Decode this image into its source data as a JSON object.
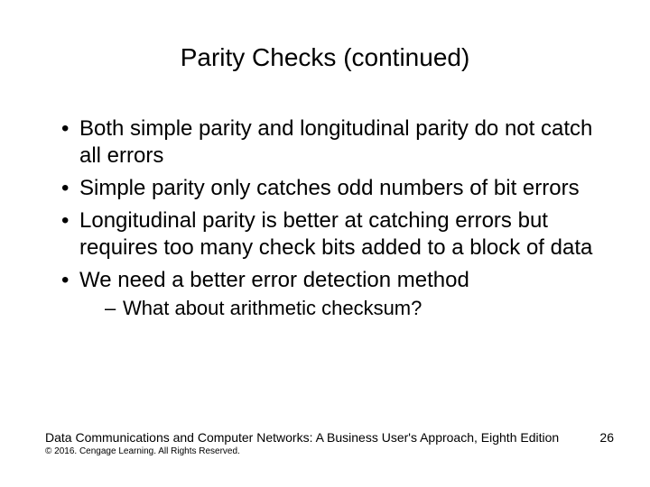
{
  "title": "Parity Checks (continued)",
  "bullets": {
    "b1": "Both simple parity and longitudinal parity do not catch all errors",
    "b2": "Simple parity only catches odd numbers of bit errors",
    "b3": "Longitudinal parity is better at catching errors but requires too many check bits added to a block of data",
    "b4": "We need a better error detection method",
    "b4_sub1": "What about arithmetic checksum?"
  },
  "footer": {
    "source": "Data Communications and Computer Networks: A Business User's Approach, Eighth Edition",
    "page": "26",
    "copyright": "© 2016. Cengage Learning. All Rights Reserved."
  },
  "style": {
    "background_color": "#ffffff",
    "text_color": "#000000",
    "title_fontsize": 28,
    "bullet_fontsize": 24,
    "sub_fontsize": 22,
    "footer_fontsize": 14,
    "copyright_fontsize": 10,
    "slide_width": 720,
    "slide_height": 540
  }
}
